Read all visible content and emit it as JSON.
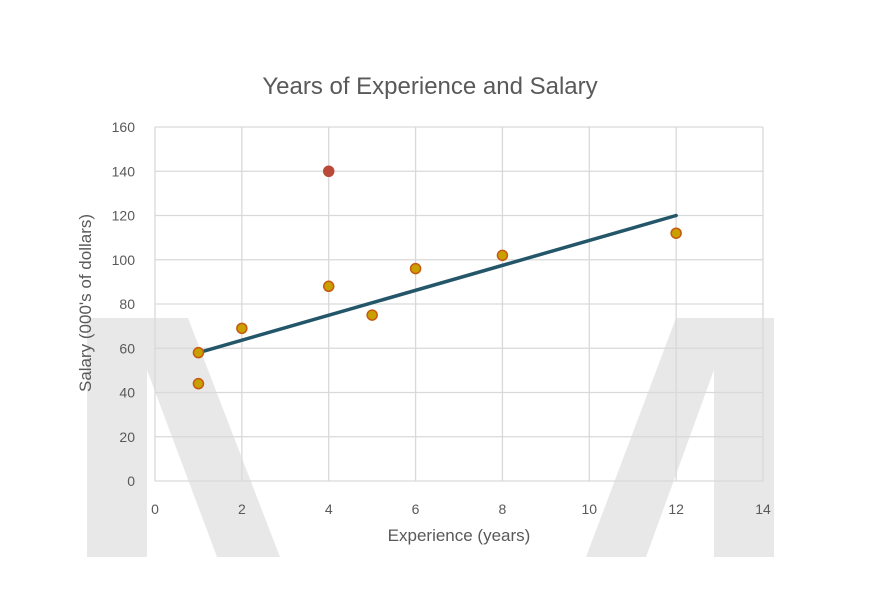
{
  "chart_data": {
    "type": "scatter",
    "title": "Years of Experience and Salary",
    "xlabel": "Experience (years)",
    "ylabel": "Salary (000's of dollars)",
    "xlim": [
      0,
      14
    ],
    "ylim": [
      0,
      160
    ],
    "x_ticks": [
      0,
      2,
      4,
      6,
      8,
      10,
      12,
      14
    ],
    "y_ticks": [
      0,
      20,
      40,
      60,
      80,
      100,
      120,
      140,
      160
    ],
    "grid": true,
    "legend": "none",
    "series": [
      {
        "points": [
          {
            "x": 1,
            "y": 58
          },
          {
            "x": 1,
            "y": 44
          },
          {
            "x": 2,
            "y": 69
          },
          {
            "x": 4,
            "y": 88
          },
          {
            "x": 5,
            "y": 75
          },
          {
            "x": 6,
            "y": 96
          },
          {
            "x": 8,
            "y": 102
          },
          {
            "x": 12,
            "y": 112
          }
        ],
        "color": "#c9a000",
        "edge_color": "#c55a11"
      },
      {
        "points": [
          {
            "x": 4,
            "y": 140
          }
        ],
        "color": "#b94a3a",
        "edge_color": "#b94a3a"
      }
    ],
    "trendline": {
      "from": {
        "x": 1,
        "y": 58
      },
      "to": {
        "x": 12,
        "y": 120
      },
      "color": "#24566a"
    },
    "colors": {
      "grid": "#d9d9d9",
      "text": "#595959",
      "watermark": "#e8e8e8"
    }
  }
}
